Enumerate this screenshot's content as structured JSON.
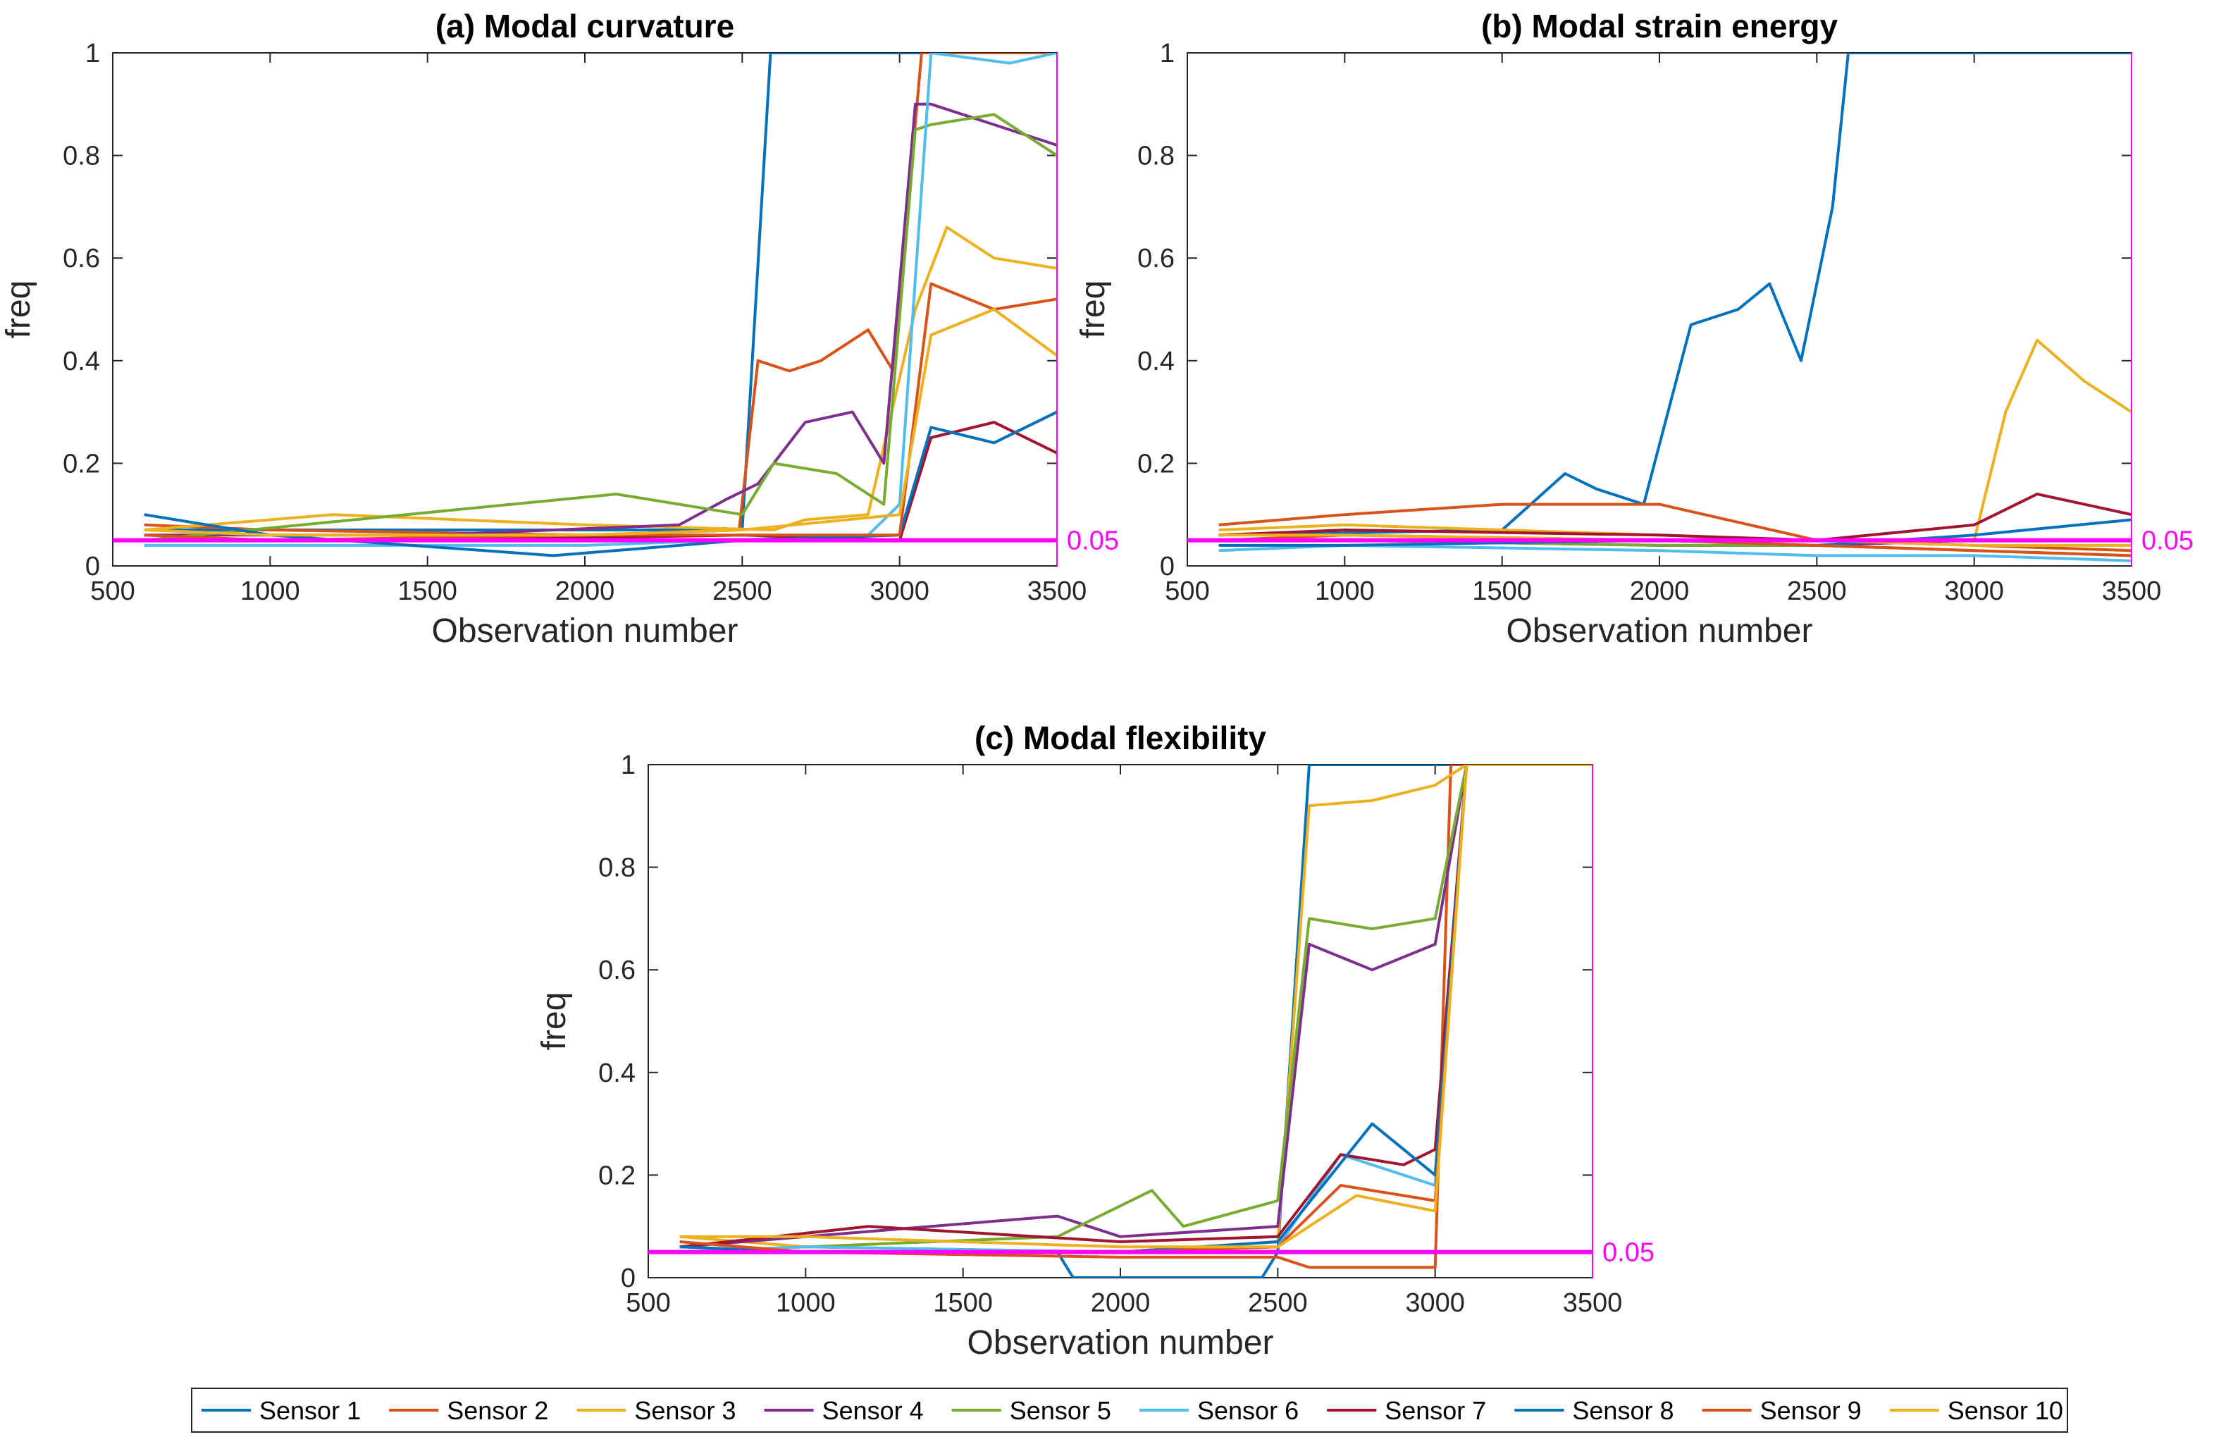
{
  "chart_data": [
    {
      "type": "line",
      "title": "(a) Modal curvature",
      "xlabel": "Observation number",
      "ylabel": "freq",
      "xlim": [
        500,
        3500
      ],
      "ylim": [
        0,
        1
      ],
      "xticks": [
        "500",
        "1000",
        "1500",
        "2000",
        "2500",
        "3000",
        "3500"
      ],
      "yticks": [
        "0",
        "0.2",
        "0.4",
        "0.6",
        "0.8",
        "1"
      ],
      "threshold": {
        "value": 0.05,
        "label": "0.05"
      },
      "series": [
        {
          "name": "Sensor 1",
          "x": [
            600,
            2500,
            2590,
            3500
          ],
          "y": [
            0.07,
            0.07,
            1,
            1
          ]
        },
        {
          "name": "Sensor 2",
          "x": [
            600,
            1000,
            2000,
            2490,
            2550,
            2650,
            2750,
            2900,
            2980,
            3070,
            3500
          ],
          "y": [
            0.08,
            0.07,
            0.06,
            0.07,
            0.4,
            0.38,
            0.4,
            0.46,
            0.38,
            1,
            1
          ]
        },
        {
          "name": "Sensor 3",
          "x": [
            600,
            1200,
            2000,
            2600,
            2700,
            2900,
            3050,
            3150,
            3300,
            3500
          ],
          "y": [
            0.07,
            0.1,
            0.08,
            0.07,
            0.09,
            0.1,
            0.5,
            0.66,
            0.6,
            0.58
          ]
        },
        {
          "name": "Sensor 4",
          "x": [
            600,
            1500,
            2300,
            2450,
            2550,
            2700,
            2850,
            2950,
            3050,
            3100,
            3300,
            3500
          ],
          "y": [
            0.06,
            0.06,
            0.08,
            0.13,
            0.16,
            0.28,
            0.3,
            0.2,
            0.9,
            0.9,
            0.86,
            0.82
          ]
        },
        {
          "name": "Sensor 5",
          "x": [
            600,
            2100,
            2500,
            2600,
            2800,
            2950,
            3050,
            3100,
            3300,
            3500
          ],
          "y": [
            0.05,
            0.14,
            0.1,
            0.2,
            0.18,
            0.12,
            0.85,
            0.86,
            0.88,
            0.8
          ]
        },
        {
          "name": "Sensor 6",
          "x": [
            600,
            2000,
            2900,
            3000,
            3100,
            3350,
            3500
          ],
          "y": [
            0.04,
            0.04,
            0.06,
            0.12,
            1,
            0.98,
            1
          ]
        },
        {
          "name": "Sensor 7",
          "x": [
            600,
            1500,
            2500,
            3000,
            3100,
            3300,
            3500
          ],
          "y": [
            0.05,
            0.05,
            0.06,
            0.05,
            0.25,
            0.28,
            0.22
          ]
        },
        {
          "name": "Sensor 8",
          "x": [
            600,
            1000,
            1900,
            2500,
            3000,
            3100,
            3300,
            3500
          ],
          "y": [
            0.1,
            0.06,
            0.02,
            0.05,
            0.06,
            0.27,
            0.24,
            0.3
          ]
        },
        {
          "name": "Sensor 9",
          "x": [
            600,
            1000,
            2000,
            2500,
            3000,
            3100,
            3300,
            3500
          ],
          "y": [
            0.06,
            0.05,
            0.06,
            0.06,
            0.06,
            0.55,
            0.5,
            0.52
          ]
        },
        {
          "name": "Sensor 10",
          "x": [
            600,
            1000,
            2000,
            2500,
            3000,
            3100,
            3300,
            3500
          ],
          "y": [
            0.07,
            0.06,
            0.06,
            0.07,
            0.1,
            0.45,
            0.5,
            0.41
          ]
        }
      ]
    },
    {
      "type": "line",
      "title": "(b) Modal strain energy",
      "xlabel": "Observation number",
      "ylabel": "freq",
      "xlim": [
        500,
        3500
      ],
      "ylim": [
        0,
        1
      ],
      "xticks": [
        "500",
        "1000",
        "1500",
        "2000",
        "2500",
        "3000",
        "3500"
      ],
      "yticks": [
        "0",
        "0.2",
        "0.4",
        "0.6",
        "0.8",
        "1"
      ],
      "threshold": {
        "value": 0.05,
        "label": "0.05"
      },
      "series": [
        {
          "name": "Sensor 1",
          "x": [
            600,
            1500,
            1700,
            1800,
            1950,
            2100,
            2250,
            2350,
            2450,
            2550,
            2600,
            3500
          ],
          "y": [
            0.06,
            0.07,
            0.18,
            0.15,
            0.12,
            0.47,
            0.5,
            0.55,
            0.4,
            0.7,
            1,
            1
          ]
        },
        {
          "name": "Sensor 2",
          "x": [
            600,
            1000,
            1500,
            2000,
            2500,
            3000,
            3500
          ],
          "y": [
            0.08,
            0.1,
            0.12,
            0.12,
            0.05,
            0.04,
            0.03
          ]
        },
        {
          "name": "Sensor 3",
          "x": [
            600,
            1000,
            1500,
            2000,
            2500,
            3000,
            3100,
            3200,
            3350,
            3500
          ],
          "y": [
            0.07,
            0.08,
            0.07,
            0.06,
            0.05,
            0.05,
            0.3,
            0.44,
            0.36,
            0.3
          ]
        },
        {
          "name": "Sensor 4",
          "x": [
            600,
            1000,
            2000,
            2500,
            3000,
            3500
          ],
          "y": [
            0.05,
            0.05,
            0.04,
            0.04,
            0.05,
            0.05
          ]
        },
        {
          "name": "Sensor 5",
          "x": [
            600,
            1000,
            2000,
            2500,
            3000,
            3500
          ],
          "y": [
            0.05,
            0.05,
            0.04,
            0.04,
            0.03,
            0.02
          ]
        },
        {
          "name": "Sensor 6",
          "x": [
            600,
            1000,
            2000,
            2500,
            3000,
            3500
          ],
          "y": [
            0.03,
            0.04,
            0.03,
            0.02,
            0.02,
            0.01
          ]
        },
        {
          "name": "Sensor 7",
          "x": [
            600,
            1000,
            2000,
            2500,
            3000,
            3200,
            3350,
            3500
          ],
          "y": [
            0.06,
            0.07,
            0.06,
            0.05,
            0.08,
            0.14,
            0.12,
            0.1
          ]
        },
        {
          "name": "Sensor 8",
          "x": [
            600,
            1000,
            2000,
            2500,
            3000,
            3500
          ],
          "y": [
            0.04,
            0.04,
            0.05,
            0.04,
            0.06,
            0.09
          ]
        },
        {
          "name": "Sensor 9",
          "x": [
            600,
            1000,
            2000,
            2500,
            3000,
            3500
          ],
          "y": [
            0.05,
            0.06,
            0.05,
            0.04,
            0.03,
            0.02
          ]
        },
        {
          "name": "Sensor 10",
          "x": [
            600,
            1000,
            2000,
            2500,
            3000,
            3500
          ],
          "y": [
            0.06,
            0.06,
            0.05,
            0.05,
            0.04,
            0.04
          ]
        }
      ]
    },
    {
      "type": "line",
      "title": "(c) Modal flexibility",
      "xlabel": "Observation number",
      "ylabel": "freq",
      "xlim": [
        500,
        3500
      ],
      "ylim": [
        0,
        1
      ],
      "xticks": [
        "500",
        "1000",
        "1500",
        "2000",
        "2500",
        "3000",
        "3500"
      ],
      "yticks": [
        "0",
        "0.2",
        "0.4",
        "0.6",
        "0.8",
        "1"
      ],
      "threshold": {
        "value": 0.05,
        "label": "0.05"
      },
      "series": [
        {
          "name": "Sensor 1",
          "x": [
            600,
            1800,
            1850,
            2450,
            2500,
            2600,
            3500
          ],
          "y": [
            0.05,
            0.05,
            0,
            0,
            0.05,
            1,
            1
          ]
        },
        {
          "name": "Sensor 2",
          "x": [
            600,
            1000,
            2000,
            2500,
            2550,
            2600,
            3000,
            3050,
            3500
          ],
          "y": [
            0.05,
            0.05,
            0.04,
            0.04,
            0.03,
            0.02,
            0.02,
            1,
            1
          ]
        },
        {
          "name": "Sensor 3",
          "x": [
            600,
            1000,
            2000,
            2500,
            2600,
            2800,
            3000,
            3100,
            3500
          ],
          "y": [
            0.08,
            0.06,
            0.05,
            0.07,
            0.92,
            0.93,
            0.96,
            1,
            1
          ]
        },
        {
          "name": "Sensor 4",
          "x": [
            600,
            1800,
            2000,
            2500,
            2600,
            2800,
            3000,
            3100,
            3500
          ],
          "y": [
            0.06,
            0.12,
            0.08,
            0.1,
            0.65,
            0.6,
            0.65,
            1,
            1
          ]
        },
        {
          "name": "Sensor 5",
          "x": [
            600,
            1800,
            2100,
            2200,
            2500,
            2600,
            2800,
            3000,
            3100,
            3500
          ],
          "y": [
            0.05,
            0.08,
            0.17,
            0.1,
            0.15,
            0.7,
            0.68,
            0.7,
            1,
            1
          ]
        },
        {
          "name": "Sensor 6",
          "x": [
            600,
            1000,
            2000,
            2500,
            2700,
            3000,
            3100,
            3500
          ],
          "y": [
            0.05,
            0.06,
            0.05,
            0.06,
            0.24,
            0.18,
            1,
            1
          ]
        },
        {
          "name": "Sensor 7",
          "x": [
            600,
            1200,
            2000,
            2500,
            2700,
            2900,
            3000,
            3100,
            3500
          ],
          "y": [
            0.06,
            0.1,
            0.07,
            0.08,
            0.24,
            0.22,
            0.25,
            1,
            1
          ]
        },
        {
          "name": "Sensor 8",
          "x": [
            600,
            1000,
            2000,
            2500,
            2800,
            3000,
            3100,
            3500
          ],
          "y": [
            0.06,
            0.05,
            0.05,
            0.07,
            0.3,
            0.2,
            1,
            1
          ]
        },
        {
          "name": "Sensor 9",
          "x": [
            600,
            1000,
            2000,
            2500,
            2700,
            3000,
            3100,
            3500
          ],
          "y": [
            0.07,
            0.05,
            0.05,
            0.06,
            0.18,
            0.15,
            1,
            1
          ]
        },
        {
          "name": "Sensor 10",
          "x": [
            600,
            1000,
            2000,
            2500,
            2750,
            3000,
            3100,
            3500
          ],
          "y": [
            0.08,
            0.08,
            0.06,
            0.06,
            0.16,
            0.13,
            1,
            1
          ]
        }
      ]
    }
  ],
  "legend": [
    "Sensor 1",
    "Sensor 2",
    "Sensor 3",
    "Sensor 4",
    "Sensor 5",
    "Sensor 6",
    "Sensor 7",
    "Sensor 8",
    "Sensor 9",
    "Sensor 10"
  ],
  "colors": {
    "series": [
      "#0072BD",
      "#D95319",
      "#EDB120",
      "#7E2F8E",
      "#77AC30",
      "#4DBEEE",
      "#A2142F",
      "#0072BD",
      "#D95319",
      "#EDB120"
    ],
    "threshold": "#FF00FF",
    "axis": "#262626"
  }
}
